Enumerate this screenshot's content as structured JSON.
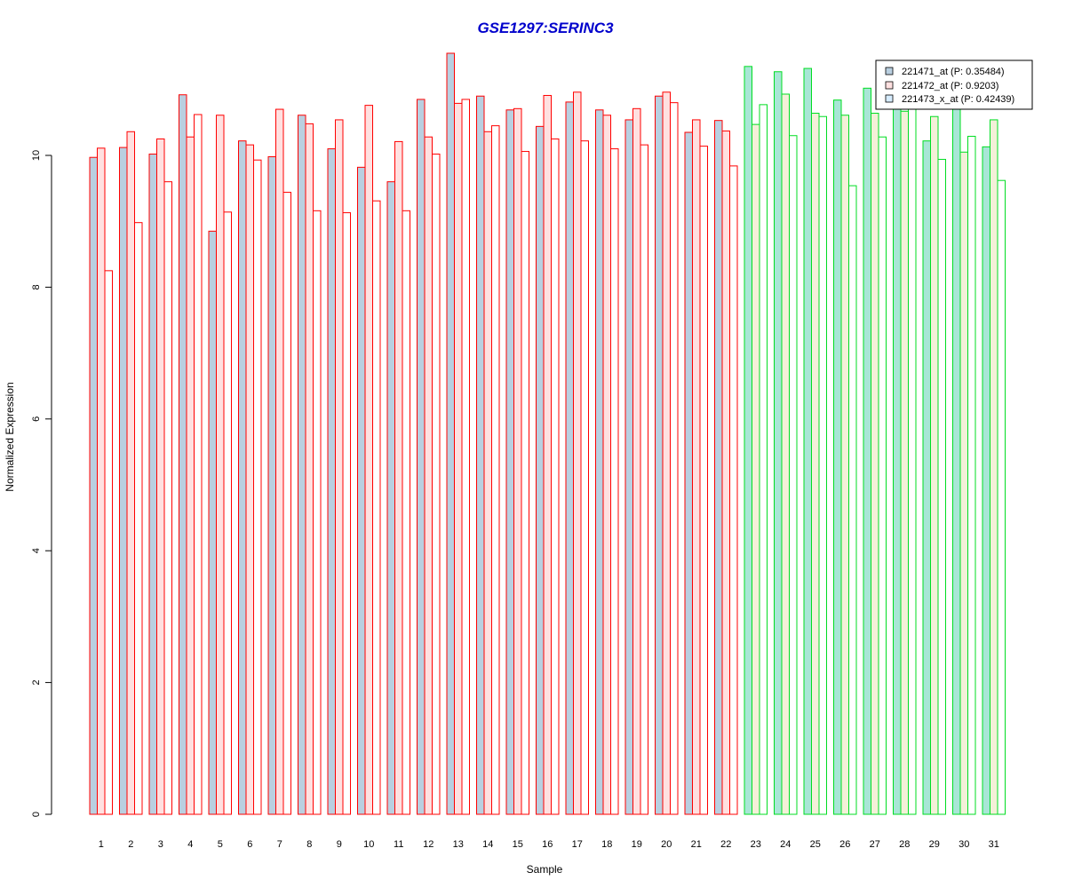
{
  "chart_data": {
    "type": "bar",
    "title": "GSE1297:SERINC3",
    "xlabel": "Sample",
    "ylabel": "Normalized Expression",
    "ylim": [
      0,
      11.6
    ],
    "yticks": [
      "0",
      "2",
      "4",
      "6",
      "8",
      "10"
    ],
    "categories": [
      "1",
      "2",
      "3",
      "4",
      "5",
      "6",
      "7",
      "8",
      "9",
      "10",
      "11",
      "12",
      "13",
      "14",
      "15",
      "16",
      "17",
      "18",
      "19",
      "20",
      "21",
      "22",
      "23",
      "24",
      "25",
      "26",
      "27",
      "28",
      "29",
      "30",
      "31"
    ],
    "group_split_after": 22,
    "grid": false,
    "legend_position": "top-right",
    "series": [
      {
        "name": "221471_at (P: 0.35484)",
        "values": [
          9.97,
          10.12,
          10.02,
          10.92,
          8.85,
          10.22,
          9.98,
          10.61,
          10.1,
          9.82,
          9.6,
          10.85,
          11.55,
          10.9,
          10.69,
          10.44,
          10.81,
          10.69,
          10.54,
          10.9,
          10.35,
          10.53,
          11.35,
          11.27,
          11.32,
          10.84,
          11.02,
          10.95,
          10.22,
          11.08,
          10.13
        ]
      },
      {
        "name": "221472_at (P: 0.9203)",
        "values": [
          10.11,
          10.36,
          10.25,
          10.28,
          10.61,
          10.16,
          10.7,
          10.48,
          10.54,
          10.76,
          10.21,
          10.28,
          10.79,
          10.36,
          10.71,
          10.91,
          10.96,
          10.61,
          10.71,
          10.96,
          10.54,
          10.37,
          10.47,
          10.93,
          10.64,
          10.61,
          10.64,
          10.67,
          10.59,
          10.05,
          10.54
        ]
      },
      {
        "name": "221473_x_at (P: 0.42439)",
        "values": [
          8.25,
          8.98,
          9.6,
          10.62,
          9.14,
          9.93,
          9.44,
          9.16,
          9.13,
          9.31,
          9.16,
          10.02,
          10.85,
          10.45,
          10.06,
          10.25,
          10.22,
          10.1,
          10.16,
          10.8,
          10.14,
          9.84,
          10.77,
          10.3,
          10.59,
          9.54,
          10.28,
          11.05,
          9.94,
          10.29,
          9.62
        ]
      }
    ],
    "colors": {
      "title": "#0000cc",
      "group1_border": "#ff0000",
      "group2_border": "#00dd22",
      "group1_fills": [
        "#b9cfe0",
        "#ffe0e0",
        "#ffffff"
      ],
      "group2_fills": [
        "#a8e6d6",
        "#f4f0d8",
        "#ffffff"
      ],
      "legend_swatches": [
        "#b9cfe0",
        "#ffe0e0",
        "#d6ecff"
      ]
    }
  }
}
